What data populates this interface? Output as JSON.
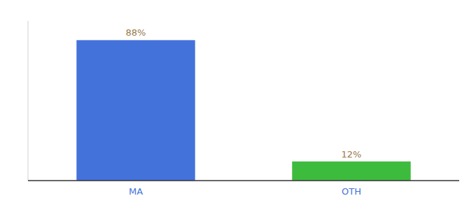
{
  "chart_data": {
    "type": "bar",
    "categories": [
      "MA",
      "OTH"
    ],
    "values": [
      88,
      12
    ],
    "value_labels": [
      "88%",
      "12%"
    ],
    "data_labels": true,
    "colors": [
      "#4472db",
      "#3dbb3d"
    ],
    "ylim": [
      0,
      100
    ],
    "tick_labels": "x"
  }
}
